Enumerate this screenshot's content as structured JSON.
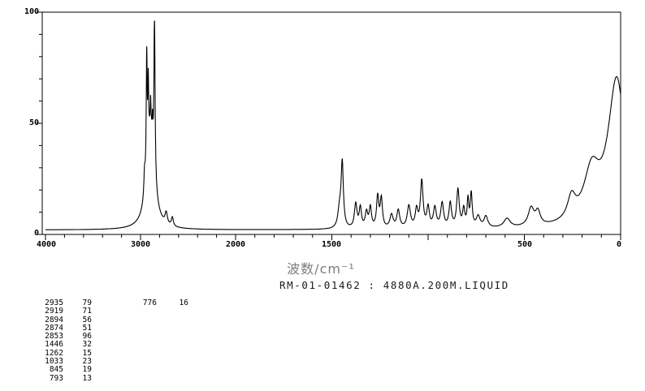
{
  "chart_data": {
    "type": "line",
    "description": "Infrared transmission spectrum, single black trace on white background",
    "xlabel": "波数/cm⁻¹",
    "caption": "RM-01-01462 : 4880A.200M.LIQUID",
    "xlim": [
      4000,
      0
    ],
    "ylim": [
      0,
      100
    ],
    "x_scale_break_at": 2000,
    "grid": false,
    "line_color": "#000000",
    "y_tick_labels": [
      "100",
      "50",
      "0"
    ],
    "y_tick_values": [
      100,
      50,
      0
    ],
    "x_tick_labels": [
      "4000",
      "3000",
      "2000",
      "1500",
      "500",
      "0"
    ],
    "x_tick_values": [
      4000,
      3000,
      2000,
      1500,
      500,
      0
    ],
    "x_minor_step_left": 200,
    "x_minor_step_right": 100,
    "y_minor_step": 10,
    "baseline": 2,
    "peaks": [
      {
        "wn": 2958,
        "h": 10,
        "w": 8
      },
      {
        "wn": 2935,
        "h": 53,
        "w": 6
      },
      {
        "wn": 2919,
        "h": 30,
        "w": 5
      },
      {
        "wn": 2894,
        "h": 11,
        "w": 4
      },
      {
        "wn": 2874,
        "h": 9,
        "w": 4
      },
      {
        "wn": 2853,
        "h": 72,
        "w": 7
      },
      {
        "wn": 2895,
        "h": 45,
        "w": 45
      },
      {
        "wn": 2730,
        "h": 5,
        "w": 14
      },
      {
        "wn": 2665,
        "h": 4,
        "w": 12
      },
      {
        "wn": 1460,
        "h": 8,
        "w": 10
      },
      {
        "wn": 1446,
        "h": 29,
        "w": 7
      },
      {
        "wn": 1376,
        "h": 11,
        "w": 8
      },
      {
        "wn": 1352,
        "h": 9,
        "w": 7
      },
      {
        "wn": 1320,
        "h": 7,
        "w": 8
      },
      {
        "wn": 1300,
        "h": 9,
        "w": 7
      },
      {
        "wn": 1262,
        "h": 14,
        "w": 7
      },
      {
        "wn": 1243,
        "h": 13,
        "w": 7
      },
      {
        "wn": 1190,
        "h": 6,
        "w": 10
      },
      {
        "wn": 1155,
        "h": 8,
        "w": 9
      },
      {
        "wn": 1100,
        "h": 10,
        "w": 10
      },
      {
        "wn": 1060,
        "h": 8,
        "w": 8
      },
      {
        "wn": 1033,
        "h": 21,
        "w": 8
      },
      {
        "wn": 1000,
        "h": 9,
        "w": 8
      },
      {
        "wn": 965,
        "h": 9,
        "w": 9
      },
      {
        "wn": 927,
        "h": 11,
        "w": 9
      },
      {
        "wn": 885,
        "h": 11,
        "w": 8
      },
      {
        "wn": 845,
        "h": 17,
        "w": 8
      },
      {
        "wn": 815,
        "h": 8,
        "w": 7
      },
      {
        "wn": 793,
        "h": 12,
        "w": 5
      },
      {
        "wn": 776,
        "h": 15,
        "w": 6
      },
      {
        "wn": 740,
        "h": 5,
        "w": 12
      },
      {
        "wn": 700,
        "h": 5,
        "w": 12
      },
      {
        "wn": 590,
        "h": 4,
        "w": 20
      },
      {
        "wn": 465,
        "h": 8,
        "w": 18
      },
      {
        "wn": 430,
        "h": 6,
        "w": 15
      },
      {
        "wn": 255,
        "h": 10,
        "w": 25
      },
      {
        "wn": 150,
        "h": 22,
        "w": 50
      },
      {
        "wn": 20,
        "h": 66,
        "w": 55
      }
    ]
  },
  "peak_table": {
    "rows": [
      [
        "2935",
        "79"
      ],
      [
        "2919",
        "71"
      ],
      [
        "2894",
        "56"
      ],
      [
        "2874",
        "51"
      ],
      [
        "2853",
        "96"
      ],
      [
        "1446",
        "32"
      ],
      [
        "1262",
        "15"
      ],
      [
        "1033",
        "23"
      ],
      [
        "845",
        "19"
      ],
      [
        "793",
        "13"
      ]
    ],
    "first_row_extra": [
      "776",
      "16"
    ]
  }
}
